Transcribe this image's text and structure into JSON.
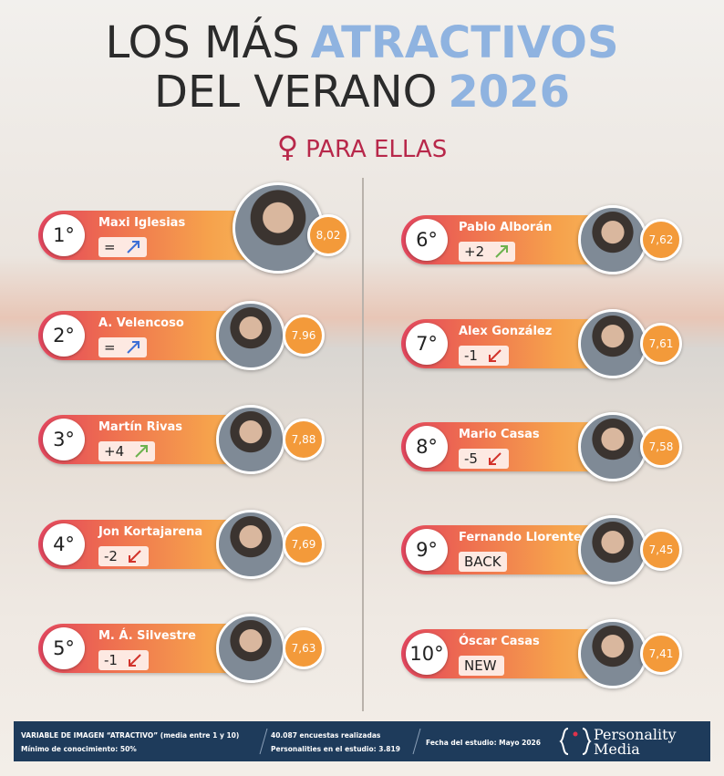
{
  "title": {
    "line1_a": "LOS MÁS",
    "line1_b": "ATRACTIVOS",
    "line2_a": "DEL VERANO",
    "line2_b": "2026"
  },
  "subtitle": {
    "symbol": "♀",
    "text": "PARA ELLAS"
  },
  "rankings": [
    {
      "rank": "1°",
      "name": "Maxi Iglesias",
      "change": "=",
      "score": "8,02"
    },
    {
      "rank": "2°",
      "name": "A. Velencoso",
      "change": "=",
      "score": "7.96"
    },
    {
      "rank": "3°",
      "name": "Martín Rivas",
      "change": "+4",
      "score": "7,88"
    },
    {
      "rank": "4°",
      "name": "Jon Kortajarena",
      "change": "-2",
      "score": "7,69"
    },
    {
      "rank": "5°",
      "name": "M. Á. Silvestre",
      "change": "-1",
      "score": "7,63"
    },
    {
      "rank": "6°",
      "name": "Pablo Alborán",
      "change": "+2",
      "score": "7,62"
    },
    {
      "rank": "7°",
      "name": "Alex González",
      "change": "-1",
      "score": "7,61"
    },
    {
      "rank": "8°",
      "name": "Mario Casas",
      "change": "-5",
      "score": "7,58"
    },
    {
      "rank": "9°",
      "name": "Fernando Llorente",
      "change": "BACK",
      "score": "7,45"
    },
    {
      "rank": "10°",
      "name": "Óscar Casas",
      "change": "NEW",
      "score": "7,41"
    }
  ],
  "footer": {
    "variable": "VARIABLE  DE IMAGEN “ATRACTIVO”  (media  entre 1 y 10)",
    "minimum": "Mínimo de conocimiento: 50%",
    "surveys": "40.087 encuestas realizadas",
    "personalities": "Personalities en el estudio: 3.819",
    "date": "Fecha del estudio: Mayo 2026",
    "logo_top": "Personality",
    "logo_bottom": "Media"
  }
}
